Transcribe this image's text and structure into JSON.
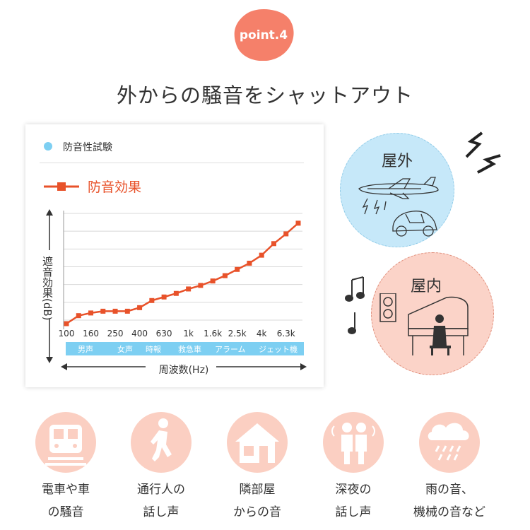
{
  "badge": {
    "label": "point.4",
    "color": "#f5806a"
  },
  "headline": "外からの騒音をシャットアウト",
  "legend": {
    "series1_label": "防音性試験",
    "series2_label": "防音効果"
  },
  "colors": {
    "accent": "#e8522a",
    "light_blue": "#7dcff2",
    "pink": "#fbcfc2"
  },
  "chart_data": {
    "type": "line",
    "xlabel": "周波数(Hz)",
    "ylabel": "遮音効果(dB)",
    "x_tick_labels": [
      "100",
      "160",
      "250",
      "400",
      "630",
      "1k",
      "1.6k",
      "2.5k",
      "4k",
      "6.3k"
    ],
    "x": [
      "100",
      "125",
      "160",
      "200",
      "250",
      "315",
      "400",
      "500",
      "630",
      "800",
      "1k",
      "1.25k",
      "1.6k",
      "2k",
      "2.5k",
      "3.15k",
      "4k",
      "5k",
      "6.3k",
      "8k"
    ],
    "series": [
      {
        "name": "防音効果",
        "values": [
          0,
          4.5,
          6,
          7,
          7,
          7,
          9,
          13,
          15,
          17,
          19.5,
          21.5,
          24,
          27,
          30.5,
          34,
          38.5,
          45,
          50.5,
          56.5
        ]
      }
    ],
    "ylim": [
      0,
      62
    ],
    "grid": "horizontal",
    "sound_sources": [
      "男声",
      "女声",
      "時報",
      "救急車",
      "アラーム",
      "ジェット機"
    ]
  },
  "illustration": {
    "outdoor_label": "屋外",
    "indoor_label": "屋内"
  },
  "noise_sources": [
    {
      "icon": "train-car-icon",
      "line1": "電車や車",
      "line2": "の騒音"
    },
    {
      "icon": "walking-person-icon",
      "line1": "通行人の",
      "line2": "話し声"
    },
    {
      "icon": "house-icon",
      "line1": "隣部屋",
      "line2": "からの音"
    },
    {
      "icon": "talking-people-icon",
      "line1": "深夜の",
      "line2": "話し声"
    },
    {
      "icon": "rain-cloud-icon",
      "line1": "雨の音、",
      "line2": "機械の音など"
    }
  ]
}
